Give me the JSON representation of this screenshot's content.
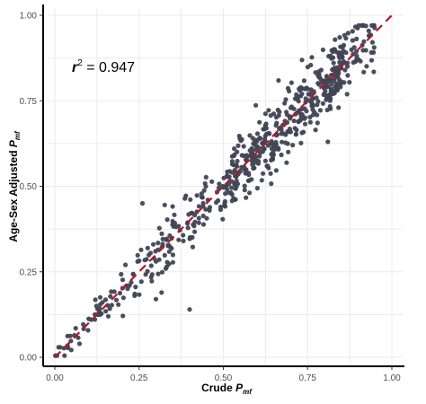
{
  "chart_data": {
    "type": "scatter",
    "title": "",
    "xlabel": {
      "main": "Crude ",
      "var": "P",
      "sub": "mf"
    },
    "ylabel": {
      "main": "Age-Sex Adjusted ",
      "var": "P",
      "sub": "mf"
    },
    "xlim": [
      0,
      1
    ],
    "ylim": [
      0,
      1
    ],
    "x_ticks": [
      0,
      0.25,
      0.5,
      0.75,
      1
    ],
    "x_tick_labels": [
      "0.00",
      "0.25",
      "0.50",
      "0.75",
      "1.00"
    ],
    "y_ticks": [
      0,
      0.25,
      0.5,
      0.75,
      1
    ],
    "y_tick_labels": [
      "0.00",
      "0.25",
      "0.50",
      "0.75",
      "1.00"
    ],
    "grid": true,
    "reference_line": {
      "slope": 1,
      "intercept": 0,
      "style": "dashed",
      "color": "#b2182b"
    },
    "annotation": {
      "var": "r",
      "sup": "2",
      "text": " = 0.947"
    },
    "point_color": "#404454",
    "n_points_shown": 620,
    "approx_noise_sd": 0.04,
    "outliers": [
      {
        "x": 0.4,
        "y": 0.14
      },
      {
        "x": 0.3,
        "y": 0.17
      },
      {
        "x": 0.26,
        "y": 0.45
      },
      {
        "x": 0.81,
        "y": 0.63
      }
    ]
  }
}
